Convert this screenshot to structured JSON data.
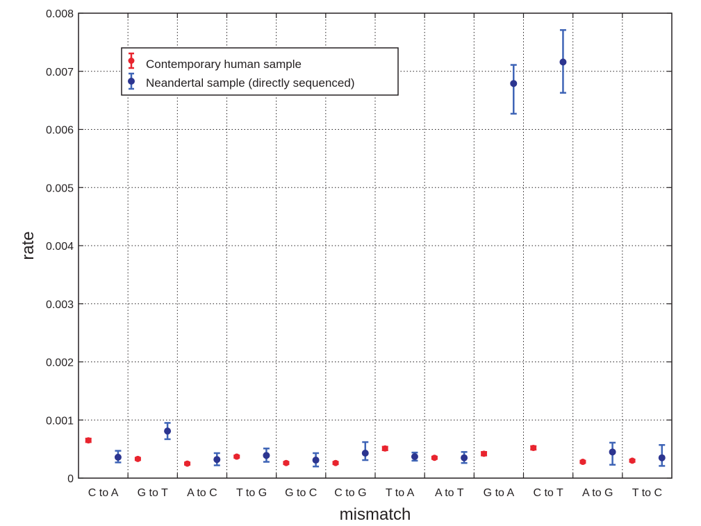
{
  "chart_data": {
    "type": "scatter",
    "subtype": "error-bar",
    "title": "",
    "xlabel": "mismatch",
    "ylabel": "rate",
    "ylim": [
      0,
      0.008
    ],
    "yticks": [
      "0",
      "0.001",
      "0.002",
      "0.003",
      "0.004",
      "0.005",
      "0.006",
      "0.007",
      "0.008"
    ],
    "grid": true,
    "legend_position": "top-left",
    "categories": [
      "C to A",
      "G to T",
      "A to C",
      "T to G",
      "G to C",
      "C to G",
      "T to A",
      "A to T",
      "G to A",
      "C to T",
      "A to G",
      "T to C"
    ],
    "series": [
      {
        "name": "Contemporary human sample",
        "color": "#e8242e",
        "values": [
          0.00065,
          0.00033,
          0.00025,
          0.00037,
          0.00026,
          0.00026,
          0.00051,
          0.00035,
          0.00042,
          0.00052,
          0.00028,
          0.0003
        ],
        "error_low": [
          0.00062,
          0.00031,
          0.00023,
          0.00035,
          0.00024,
          0.00024,
          0.00048,
          0.00033,
          0.00039,
          0.00049,
          0.00026,
          0.00028
        ],
        "error_high": [
          0.00068,
          0.00035,
          0.00027,
          0.00039,
          0.00028,
          0.00028,
          0.00054,
          0.00037,
          0.00045,
          0.00055,
          0.0003,
          0.00032
        ]
      },
      {
        "name": "Neandertal sample (directly sequenced)",
        "color": "#2c3590",
        "bar_color": "#3e64b6",
        "values": [
          0.00036,
          0.00081,
          0.00032,
          0.00039,
          0.00031,
          0.00043,
          0.00037,
          0.00035,
          0.00679,
          0.00716,
          0.00045,
          0.00035
        ],
        "error_low": [
          0.00027,
          0.00067,
          0.00022,
          0.00028,
          0.0002,
          0.00031,
          0.0003,
          0.00026,
          0.00627,
          0.00663,
          0.00023,
          0.00021
        ],
        "error_high": [
          0.00047,
          0.00095,
          0.00043,
          0.00051,
          0.00043,
          0.00062,
          0.00044,
          0.00045,
          0.00711,
          0.00771,
          0.00061,
          0.00057
        ]
      }
    ]
  }
}
